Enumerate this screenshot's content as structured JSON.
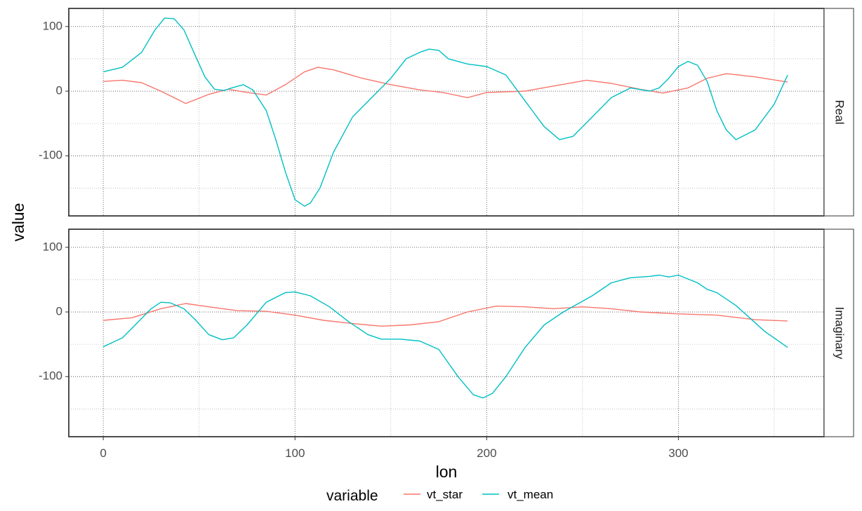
{
  "chart_data": {
    "type": "line",
    "xlabel": "lon",
    "ylabel": "value",
    "xlim": [
      -18,
      376
    ],
    "ylim": [
      -193,
      128
    ],
    "x_ticks": [
      0,
      100,
      200,
      300
    ],
    "y_ticks": [
      100,
      0,
      -100
    ],
    "grid": true,
    "legend": {
      "title": "variable",
      "position": "bottom",
      "entries": [
        "vt_star",
        "vt_mean"
      ]
    },
    "colors": {
      "vt_star": "#F8766D",
      "vt_mean": "#00BFC4"
    },
    "panels": [
      {
        "strip": "Real",
        "series": [
          {
            "name": "vt_star",
            "x": [
              0,
              10,
              20,
              30,
              43,
              55,
              65,
              75,
              85,
              95,
              105,
              112,
              120,
              135,
              150,
              165,
              177,
              190,
              200,
              220,
              235,
              252,
              265,
              280,
              292,
              305,
              315,
              325,
              340,
              357
            ],
            "y": [
              15,
              17,
              13,
              0,
              -19,
              -5,
              3,
              -2,
              -6,
              10,
              30,
              37,
              33,
              20,
              10,
              2,
              -2,
              -10,
              -2,
              0,
              8,
              17,
              12,
              3,
              -3,
              5,
              20,
              27,
              22,
              14
            ]
          },
          {
            "name": "vt_mean",
            "x": [
              0,
              10,
              20,
              27,
              32,
              37,
              42,
              48,
              53,
              58,
              63,
              67,
              73,
              78,
              85,
              90,
              95,
              100,
              105,
              108,
              113,
              120,
              130,
              140,
              150,
              158,
              165,
              170,
              175,
              180,
              190,
              200,
              210,
              220,
              230,
              238,
              245,
              255,
              265,
              275,
              285,
              290,
              295,
              300,
              305,
              310,
              315,
              320,
              325,
              330,
              340,
              350,
              357
            ],
            "y": [
              30,
              37,
              60,
              95,
              113,
              112,
              95,
              55,
              22,
              3,
              1,
              5,
              10,
              2,
              -30,
              -75,
              -125,
              -168,
              -178,
              -173,
              -150,
              -95,
              -40,
              -10,
              20,
              50,
              60,
              65,
              63,
              50,
              42,
              38,
              25,
              -15,
              -55,
              -75,
              -70,
              -40,
              -10,
              5,
              0,
              5,
              20,
              38,
              46,
              40,
              15,
              -30,
              -60,
              -75,
              -60,
              -20,
              25
            ]
          }
        ]
      },
      {
        "strip": "Imaginary",
        "series": [
          {
            "name": "vt_star",
            "x": [
              0,
              15,
              30,
              43,
              55,
              70,
              85,
              100,
              115,
              130,
              145,
              160,
              175,
              190,
              205,
              220,
              235,
              250,
              265,
              280,
              300,
              320,
              340,
              357
            ],
            "y": [
              -13,
              -9,
              5,
              13,
              8,
              2,
              1,
              -5,
              -13,
              -18,
              -22,
              -20,
              -15,
              0,
              9,
              8,
              5,
              8,
              5,
              0,
              -3,
              -5,
              -12,
              -14
            ],
            "print_note": null
          },
          {
            "name": "vt_mean",
            "x": [
              0,
              10,
              20,
              25,
              30,
              35,
              42,
              48,
              55,
              62,
              68,
              75,
              85,
              95,
              100,
              108,
              118,
              128,
              138,
              145,
              155,
              165,
              175,
              185,
              193,
              198,
              203,
              210,
              220,
              230,
              240,
              255,
              265,
              275,
              285,
              290,
              295,
              300,
              310,
              315,
              320,
              330,
              345,
              357
            ],
            "y": [
              -54,
              -40,
              -10,
              5,
              15,
              14,
              5,
              -12,
              -35,
              -43,
              -40,
              -20,
              15,
              30,
              31,
              25,
              8,
              -15,
              -35,
              -42,
              -42,
              -45,
              -58,
              -100,
              -128,
              -133,
              -126,
              -100,
              -55,
              -20,
              0,
              25,
              45,
              53,
              55,
              57,
              54,
              57,
              45,
              35,
              30,
              10,
              -30,
              -55
            ]
          }
        ]
      }
    ]
  }
}
